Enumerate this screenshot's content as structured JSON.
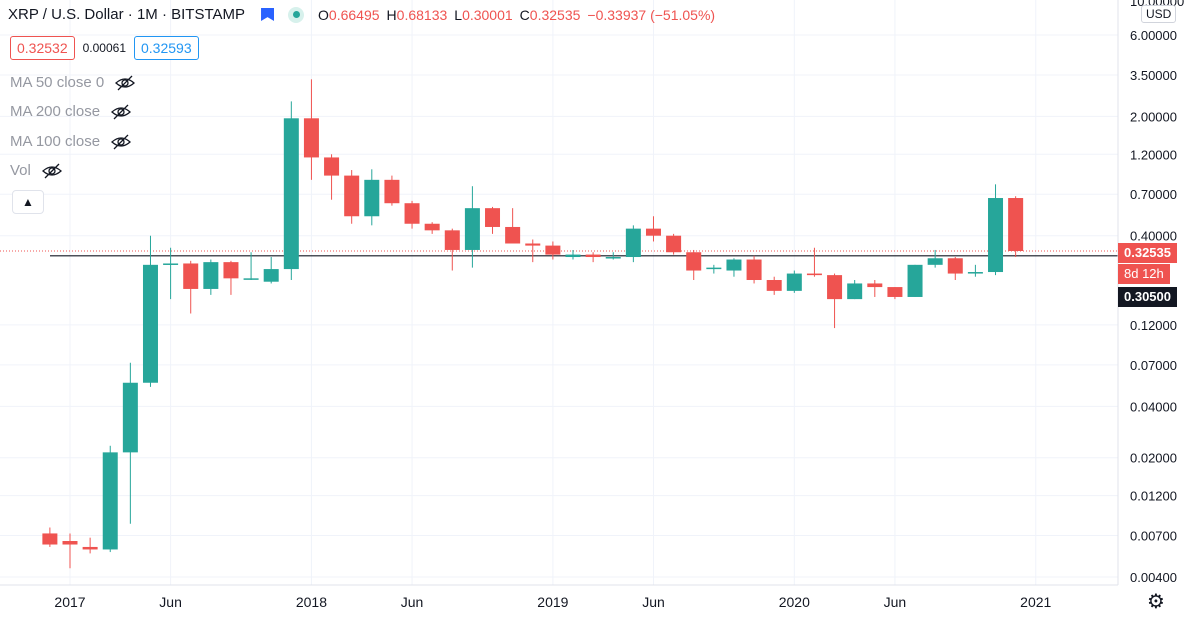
{
  "legend": {
    "symbol": "XRP / U.S. Dollar",
    "interval": "1M",
    "exchange": "BITSTAMP",
    "open_label": "O",
    "open": "0.66495",
    "high_label": "H",
    "high": "0.68133",
    "low_label": "L",
    "low": "0.30001",
    "close_label": "C",
    "close": "0.32535",
    "change": "−0.33937 (−51.05%)"
  },
  "prices": {
    "sell": "0.32532",
    "spread": "0.00061",
    "buy": "0.32593"
  },
  "indicators": [
    {
      "label": "MA 50 close 0"
    },
    {
      "label": "MA 200 close"
    },
    {
      "label": "MA 100 close"
    },
    {
      "label": "Vol"
    }
  ],
  "axis": {
    "currency": "USD",
    "top_tick_partial": "10.00000"
  },
  "tags": {
    "last_price": "0.32535",
    "countdown": "8d 12h",
    "crosshair": "0.30500"
  },
  "colors": {
    "up": "#26a69a",
    "down": "#ef5350",
    "grid": "#f0f3fa",
    "crosshair_tag": "#131722"
  },
  "chart_data": {
    "type": "candlestick",
    "title": "XRP / U.S. Dollar, 1M, BITSTAMP",
    "y_scale": "log",
    "y_ticks": [
      "6.00000",
      "3.50000",
      "2.00000",
      "1.20000",
      "0.70000",
      "0.40000",
      "0.12000",
      "0.07000",
      "0.04000",
      "0.02000",
      "0.01200",
      "0.00700",
      "0.00400"
    ],
    "x_ticks": [
      {
        "label": "2017",
        "month": 0
      },
      {
        "label": "Jun",
        "month": 5
      },
      {
        "label": "2018",
        "month": 12
      },
      {
        "label": "Jun",
        "month": 17
      },
      {
        "label": "2019",
        "month": 24
      },
      {
        "label": "Jun",
        "month": 29
      },
      {
        "label": "2020",
        "month": 36
      },
      {
        "label": "Jun",
        "month": 41
      },
      {
        "label": "2021",
        "month": 48
      }
    ],
    "horizontal_line": 0.305,
    "last_price_line": 0.32535,
    "candles": [
      {
        "m": -1,
        "o": 0.0072,
        "h": 0.0078,
        "l": 0.006,
        "c": 0.0062
      },
      {
        "m": 0,
        "o": 0.0065,
        "h": 0.0072,
        "l": 0.0045,
        "c": 0.0062
      },
      {
        "m": 1,
        "o": 0.006,
        "h": 0.0068,
        "l": 0.0055,
        "c": 0.0058
      },
      {
        "m": 2,
        "o": 0.0058,
        "h": 0.0235,
        "l": 0.0056,
        "c": 0.0215
      },
      {
        "m": 3,
        "o": 0.0215,
        "h": 0.072,
        "l": 0.0082,
        "c": 0.055
      },
      {
        "m": 4,
        "o": 0.055,
        "h": 0.4,
        "l": 0.052,
        "c": 0.27
      },
      {
        "m": 5,
        "o": 0.27,
        "h": 0.34,
        "l": 0.17,
        "c": 0.275
      },
      {
        "m": 6,
        "o": 0.275,
        "h": 0.285,
        "l": 0.14,
        "c": 0.195
      },
      {
        "m": 7,
        "o": 0.195,
        "h": 0.29,
        "l": 0.18,
        "c": 0.28
      },
      {
        "m": 8,
        "o": 0.28,
        "h": 0.285,
        "l": 0.18,
        "c": 0.225
      },
      {
        "m": 9,
        "o": 0.225,
        "h": 0.32,
        "l": 0.22,
        "c": 0.225
      },
      {
        "m": 10,
        "o": 0.215,
        "h": 0.3,
        "l": 0.21,
        "c": 0.255
      },
      {
        "m": 11,
        "o": 0.255,
        "h": 2.45,
        "l": 0.22,
        "c": 1.95
      },
      {
        "m": 12,
        "o": 1.95,
        "h": 3.3,
        "l": 0.85,
        "c": 1.15
      },
      {
        "m": 13,
        "o": 1.15,
        "h": 1.2,
        "l": 0.65,
        "c": 0.9
      },
      {
        "m": 14,
        "o": 0.9,
        "h": 0.97,
        "l": 0.47,
        "c": 0.52
      },
      {
        "m": 15,
        "o": 0.52,
        "h": 0.98,
        "l": 0.46,
        "c": 0.85
      },
      {
        "m": 16,
        "o": 0.85,
        "h": 0.9,
        "l": 0.6,
        "c": 0.62
      },
      {
        "m": 17,
        "o": 0.62,
        "h": 0.64,
        "l": 0.44,
        "c": 0.47
      },
      {
        "m": 18,
        "o": 0.47,
        "h": 0.48,
        "l": 0.41,
        "c": 0.43
      },
      {
        "m": 19,
        "o": 0.43,
        "h": 0.44,
        "l": 0.25,
        "c": 0.33
      },
      {
        "m": 20,
        "o": 0.33,
        "h": 0.78,
        "l": 0.26,
        "c": 0.58
      },
      {
        "m": 21,
        "o": 0.58,
        "h": 0.59,
        "l": 0.41,
        "c": 0.45
      },
      {
        "m": 22,
        "o": 0.45,
        "h": 0.58,
        "l": 0.36,
        "c": 0.36
      },
      {
        "m": 23,
        "o": 0.36,
        "h": 0.38,
        "l": 0.28,
        "c": 0.35
      },
      {
        "m": 24,
        "o": 0.35,
        "h": 0.37,
        "l": 0.29,
        "c": 0.31
      },
      {
        "m": 25,
        "o": 0.3,
        "h": 0.33,
        "l": 0.29,
        "c": 0.31
      },
      {
        "m": 26,
        "o": 0.31,
        "h": 0.32,
        "l": 0.28,
        "c": 0.3
      },
      {
        "m": 27,
        "o": 0.3,
        "h": 0.32,
        "l": 0.29,
        "c": 0.3
      },
      {
        "m": 28,
        "o": 0.3,
        "h": 0.46,
        "l": 0.28,
        "c": 0.44
      },
      {
        "m": 29,
        "o": 0.44,
        "h": 0.52,
        "l": 0.37,
        "c": 0.4
      },
      {
        "m": 30,
        "o": 0.4,
        "h": 0.41,
        "l": 0.31,
        "c": 0.32
      },
      {
        "m": 31,
        "o": 0.32,
        "h": 0.33,
        "l": 0.22,
        "c": 0.25
      },
      {
        "m": 32,
        "o": 0.26,
        "h": 0.27,
        "l": 0.24,
        "c": 0.26
      },
      {
        "m": 33,
        "o": 0.25,
        "h": 0.295,
        "l": 0.23,
        "c": 0.29
      },
      {
        "m": 34,
        "o": 0.29,
        "h": 0.305,
        "l": 0.21,
        "c": 0.22
      },
      {
        "m": 35,
        "o": 0.22,
        "h": 0.23,
        "l": 0.18,
        "c": 0.19
      },
      {
        "m": 36,
        "o": 0.19,
        "h": 0.25,
        "l": 0.185,
        "c": 0.24
      },
      {
        "m": 37,
        "o": 0.24,
        "h": 0.34,
        "l": 0.23,
        "c": 0.235
      },
      {
        "m": 38,
        "o": 0.235,
        "h": 0.24,
        "l": 0.115,
        "c": 0.17
      },
      {
        "m": 39,
        "o": 0.17,
        "h": 0.22,
        "l": 0.17,
        "c": 0.21
      },
      {
        "m": 40,
        "o": 0.21,
        "h": 0.22,
        "l": 0.175,
        "c": 0.2
      },
      {
        "m": 41,
        "o": 0.2,
        "h": 0.2,
        "l": 0.17,
        "c": 0.175
      },
      {
        "m": 42,
        "o": 0.175,
        "h": 0.27,
        "l": 0.175,
        "c": 0.27
      },
      {
        "m": 43,
        "o": 0.27,
        "h": 0.33,
        "l": 0.26,
        "c": 0.295
      },
      {
        "m": 44,
        "o": 0.295,
        "h": 0.3,
        "l": 0.22,
        "c": 0.24
      },
      {
        "m": 45,
        "o": 0.24,
        "h": 0.27,
        "l": 0.23,
        "c": 0.245
      },
      {
        "m": 46,
        "o": 0.245,
        "h": 0.8,
        "l": 0.235,
        "c": 0.665
      },
      {
        "m": 47,
        "o": 0.665,
        "h": 0.6813,
        "l": 0.3,
        "c": 0.3254
      }
    ]
  }
}
